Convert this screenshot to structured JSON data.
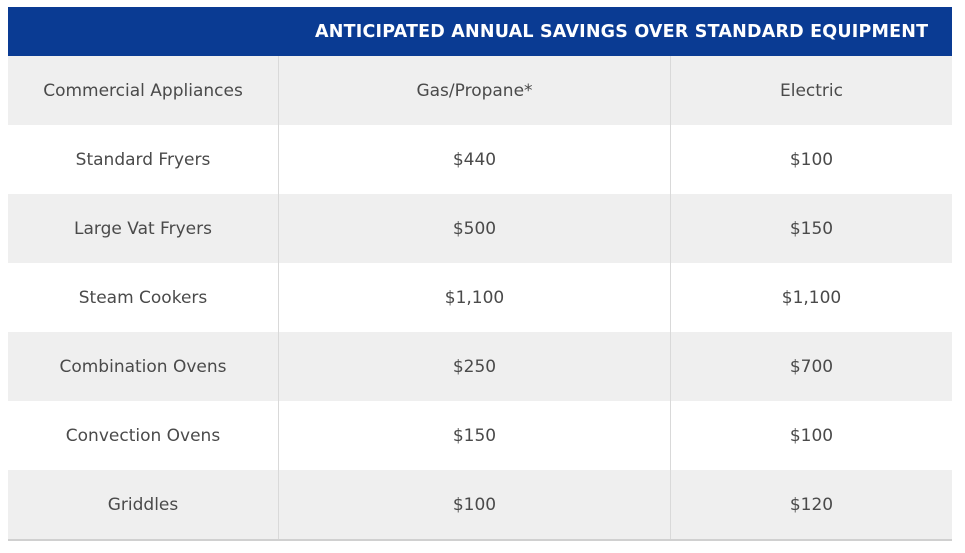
{
  "table": {
    "title": "ANTICIPATED ANNUAL SAVINGS OVER STANDARD EQUIPMENT",
    "columns": [
      "Commercial Appliances",
      "Gas/Propane*",
      "Electric"
    ],
    "rows": [
      {
        "appliance": "Standard Fryers",
        "gas": "$440",
        "electric": "$100"
      },
      {
        "appliance": "Large Vat Fryers",
        "gas": "$500",
        "electric": "$150"
      },
      {
        "appliance": "Steam Cookers",
        "gas": "$1,100",
        "electric": "$1,100"
      },
      {
        "appliance": "Combination Ovens",
        "gas": "$250",
        "electric": "$700"
      },
      {
        "appliance": "Convection Ovens",
        "gas": "$150",
        "electric": "$100"
      },
      {
        "appliance": "Griddles",
        "gas": "$100",
        "electric": "$120"
      }
    ]
  },
  "colors": {
    "banner": "#0a3b93",
    "shaded_row": "#efefef",
    "text": "#4a4a4a"
  }
}
